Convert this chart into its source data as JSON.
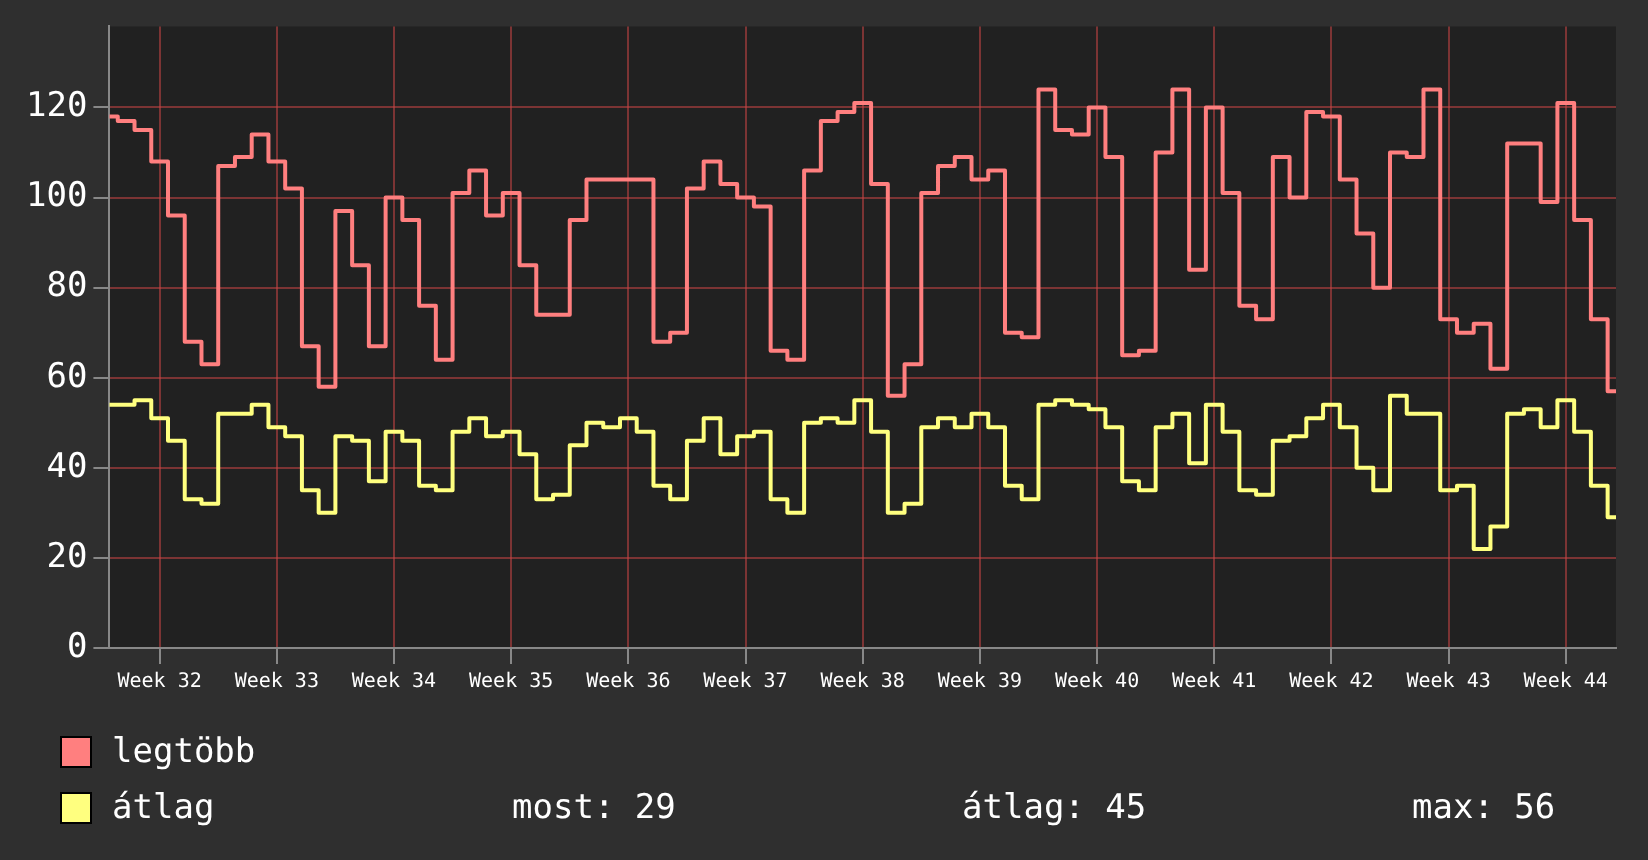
{
  "chart_data": {
    "type": "step",
    "categories": [
      null,
      null,
      null,
      "Week 32",
      null,
      null,
      null,
      null,
      null,
      null,
      "Week 33",
      null,
      null,
      null,
      null,
      null,
      null,
      "Week 34",
      null,
      null,
      null,
      null,
      null,
      null,
      "Week 35",
      null,
      null,
      null,
      null,
      null,
      null,
      "Week 36",
      null,
      null,
      null,
      null,
      null,
      null,
      "Week 37",
      null,
      null,
      null,
      null,
      null,
      null,
      "Week 38",
      null,
      null,
      null,
      null,
      null,
      null,
      "Week 39",
      null,
      null,
      null,
      null,
      null,
      null,
      "Week 40",
      null,
      null,
      null,
      null,
      null,
      null,
      "Week 41",
      null,
      null,
      null,
      null,
      null,
      null,
      "Week 42",
      null,
      null,
      null,
      null,
      null,
      null,
      "Week 43",
      null,
      null,
      null,
      null,
      null,
      null,
      "Week 44",
      null,
      null,
      null
    ],
    "series": [
      {
        "name": "legtöbb",
        "color": "#ff7f7f",
        "values": [
          118,
          117,
          115,
          108,
          96,
          68,
          63,
          107,
          109,
          114,
          108,
          102,
          67,
          58,
          97,
          85,
          67,
          100,
          95,
          76,
          64,
          101,
          106,
          96,
          101,
          85,
          74,
          74,
          95,
          104,
          104,
          104,
          104,
          68,
          70,
          102,
          108,
          103,
          100,
          98,
          66,
          64,
          106,
          117,
          119,
          121,
          103,
          56,
          63,
          101,
          107,
          109,
          104,
          106,
          70,
          69,
          124,
          115,
          114,
          120,
          109,
          65,
          66,
          110,
          124,
          84,
          120,
          101,
          76,
          73,
          109,
          100,
          119,
          118,
          104,
          92,
          80,
          110,
          109,
          124,
          73,
          70,
          72,
          62,
          112,
          112,
          99,
          121,
          95,
          73,
          57
        ]
      },
      {
        "name": "átlag",
        "color": "#ffff7f",
        "values": [
          54,
          54,
          55,
          51,
          46,
          33,
          32,
          52,
          52,
          54,
          49,
          47,
          35,
          30,
          47,
          46,
          37,
          48,
          46,
          36,
          35,
          48,
          51,
          47,
          48,
          43,
          33,
          34,
          45,
          50,
          49,
          51,
          48,
          36,
          33,
          46,
          51,
          43,
          47,
          48,
          33,
          30,
          50,
          51,
          50,
          55,
          48,
          30,
          32,
          49,
          51,
          49,
          52,
          49,
          36,
          33,
          54,
          55,
          54,
          53,
          49,
          37,
          35,
          49,
          52,
          41,
          54,
          48,
          35,
          34,
          46,
          47,
          51,
          54,
          49,
          40,
          35,
          56,
          52,
          52,
          35,
          36,
          22,
          27,
          52,
          53,
          49,
          55,
          48,
          36,
          29
        ]
      }
    ],
    "ylim": [
      0,
      138
    ],
    "yticks": [
      0,
      20,
      40,
      60,
      80,
      100,
      120
    ],
    "grid": true,
    "legend": "bottom",
    "annotations": [
      "most: 29",
      "átlag: 45",
      "max: 56"
    ]
  }
}
